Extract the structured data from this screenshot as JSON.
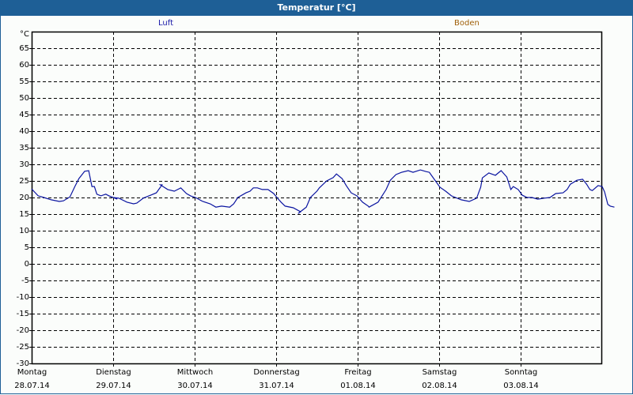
{
  "window": {
    "title": "Temperatur [°C]",
    "colors": {
      "titlebar": "#1e5f96",
      "background": "#fbfdfb",
      "line": "#0a14a0",
      "legend_luft": "#1a1aa8",
      "legend_boden": "#a0600a"
    }
  },
  "legend": [
    {
      "label": "Luft",
      "color": "#1a1aa8"
    },
    {
      "label": "Boden",
      "color": "#a0600a"
    }
  ],
  "y_unit": "°C",
  "chart_data": {
    "type": "line",
    "title": "Temperatur [°C]",
    "xlabel": "",
    "ylabel": "°C",
    "ylim": [
      -30,
      70
    ],
    "yticks": [
      65,
      60,
      55,
      50,
      45,
      40,
      35,
      30,
      25,
      20,
      15,
      10,
      5,
      0,
      -5,
      -10,
      -15,
      -20,
      -25,
      -30
    ],
    "grid": true,
    "legend_position": "top",
    "categories": [
      {
        "day": "Montag",
        "date": "28.07.14"
      },
      {
        "day": "Dienstag",
        "date": "29.07.14"
      },
      {
        "day": "Mittwoch",
        "date": "30.07.14"
      },
      {
        "day": "Donnerstag",
        "date": "31.07.14"
      },
      {
        "day": "Freitag",
        "date": "01.08.14"
      },
      {
        "day": "Samstag",
        "date": "02.08.14"
      },
      {
        "day": "Sonntag",
        "date": "03.08.14"
      }
    ],
    "series": [
      {
        "name": "Luft",
        "color": "#0a14a0",
        "x_days": [
          0.0,
          0.08,
          0.15,
          0.24,
          0.34,
          0.39,
          0.47,
          0.53,
          0.58,
          0.65,
          0.7,
          0.74,
          0.77,
          0.8,
          0.85,
          0.91,
          0.95,
          1.05,
          1.0,
          1.07,
          1.17,
          1.25,
          1.29,
          1.37,
          1.46,
          1.53,
          1.6,
          1.58,
          1.67,
          1.75,
          1.83,
          1.9,
          1.95,
          2.01,
          2.1,
          2.19,
          2.26,
          2.33,
          2.43,
          2.48,
          2.53,
          2.63,
          2.68,
          2.72,
          2.77,
          2.83,
          2.9,
          2.97,
          3.01,
          3.06,
          3.11,
          3.21,
          3.3,
          3.27,
          3.37,
          3.42,
          3.5,
          3.53,
          3.62,
          3.7,
          3.74,
          3.81,
          3.86,
          3.92,
          3.99,
          4.06,
          4.13,
          4.14,
          4.25,
          4.35,
          4.4,
          4.47,
          4.54,
          4.62,
          4.68,
          4.77,
          4.84,
          4.88,
          4.94,
          5.01,
          5.08,
          5.15,
          5.27,
          5.37,
          5.46,
          5.51,
          5.53,
          5.61,
          5.69,
          5.76,
          5.83,
          5.88,
          5.91,
          5.97,
          6.02,
          6.08,
          6.14,
          6.21,
          6.29,
          6.36,
          6.43,
          6.52,
          6.57,
          6.61,
          6.69,
          6.76,
          6.81,
          6.85,
          6.88,
          6.95,
          7.0,
          7.03,
          7.07,
          7.1,
          7.15
        ],
        "values": [
          22.6,
          20.5,
          20.0,
          19.3,
          18.8,
          19.0,
          20.2,
          23.3,
          25.7,
          27.9,
          28.1,
          23.3,
          23.3,
          21.0,
          20.5,
          21.0,
          20.5,
          19.5,
          20.0,
          19.8,
          18.6,
          18.1,
          18.3,
          19.8,
          20.7,
          21.4,
          23.8,
          23.8,
          22.4,
          21.9,
          22.9,
          21.2,
          20.5,
          20.0,
          18.8,
          18.1,
          17.1,
          17.4,
          17.1,
          18.1,
          20.0,
          21.4,
          21.9,
          22.9,
          22.9,
          22.4,
          22.4,
          21.2,
          20.0,
          18.6,
          17.4,
          16.9,
          15.7,
          15.2,
          17.1,
          20.0,
          21.9,
          22.9,
          25.0,
          26.0,
          27.1,
          25.7,
          23.6,
          21.4,
          20.5,
          18.6,
          17.4,
          17.1,
          18.6,
          22.4,
          25.2,
          26.9,
          27.6,
          28.1,
          27.6,
          28.3,
          27.8,
          27.6,
          25.5,
          23.1,
          21.9,
          20.5,
          19.3,
          18.8,
          19.8,
          23.1,
          25.9,
          27.4,
          26.7,
          28.1,
          26.2,
          22.4,
          23.3,
          22.4,
          20.7,
          20.0,
          20.0,
          19.5,
          19.8,
          20.0,
          21.2,
          21.4,
          22.4,
          24.0,
          25.2,
          25.5,
          24.0,
          22.4,
          22.1,
          23.6,
          23.3,
          21.7,
          17.9,
          17.4,
          17.1
        ]
      }
    ]
  }
}
